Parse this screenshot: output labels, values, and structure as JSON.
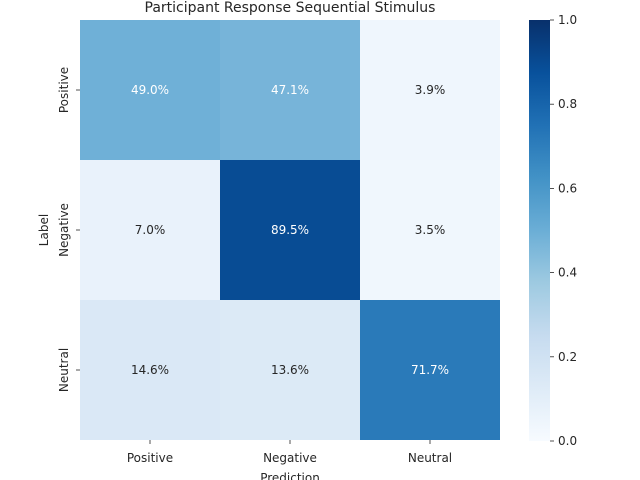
{
  "chart_data": {
    "type": "heatmap",
    "title": "Participant Response Sequential Stimulus",
    "xlabel": "Prediction",
    "ylabel": "Label",
    "x_categories": [
      "Positive",
      "Negative",
      "Neutral"
    ],
    "y_categories": [
      "Positive",
      "Negative",
      "Neutral"
    ],
    "values": [
      [
        0.49,
        0.471,
        0.039
      ],
      [
        0.07,
        0.895,
        0.035
      ],
      [
        0.146,
        0.136,
        0.717
      ]
    ],
    "annotations": [
      [
        "49.0%",
        "47.1%",
        "3.9%"
      ],
      [
        "7.0%",
        "89.5%",
        "3.5%"
      ],
      [
        "14.6%",
        "13.6%",
        "71.7%"
      ]
    ],
    "colorbar": {
      "range": [
        0,
        1
      ],
      "ticks": [
        0.0,
        0.2,
        0.4,
        0.6,
        0.8,
        1.0
      ],
      "tick_labels": [
        "0.0",
        "0.2",
        "0.4",
        "0.6",
        "0.8",
        "1.0"
      ],
      "colormap": "Blues"
    }
  }
}
